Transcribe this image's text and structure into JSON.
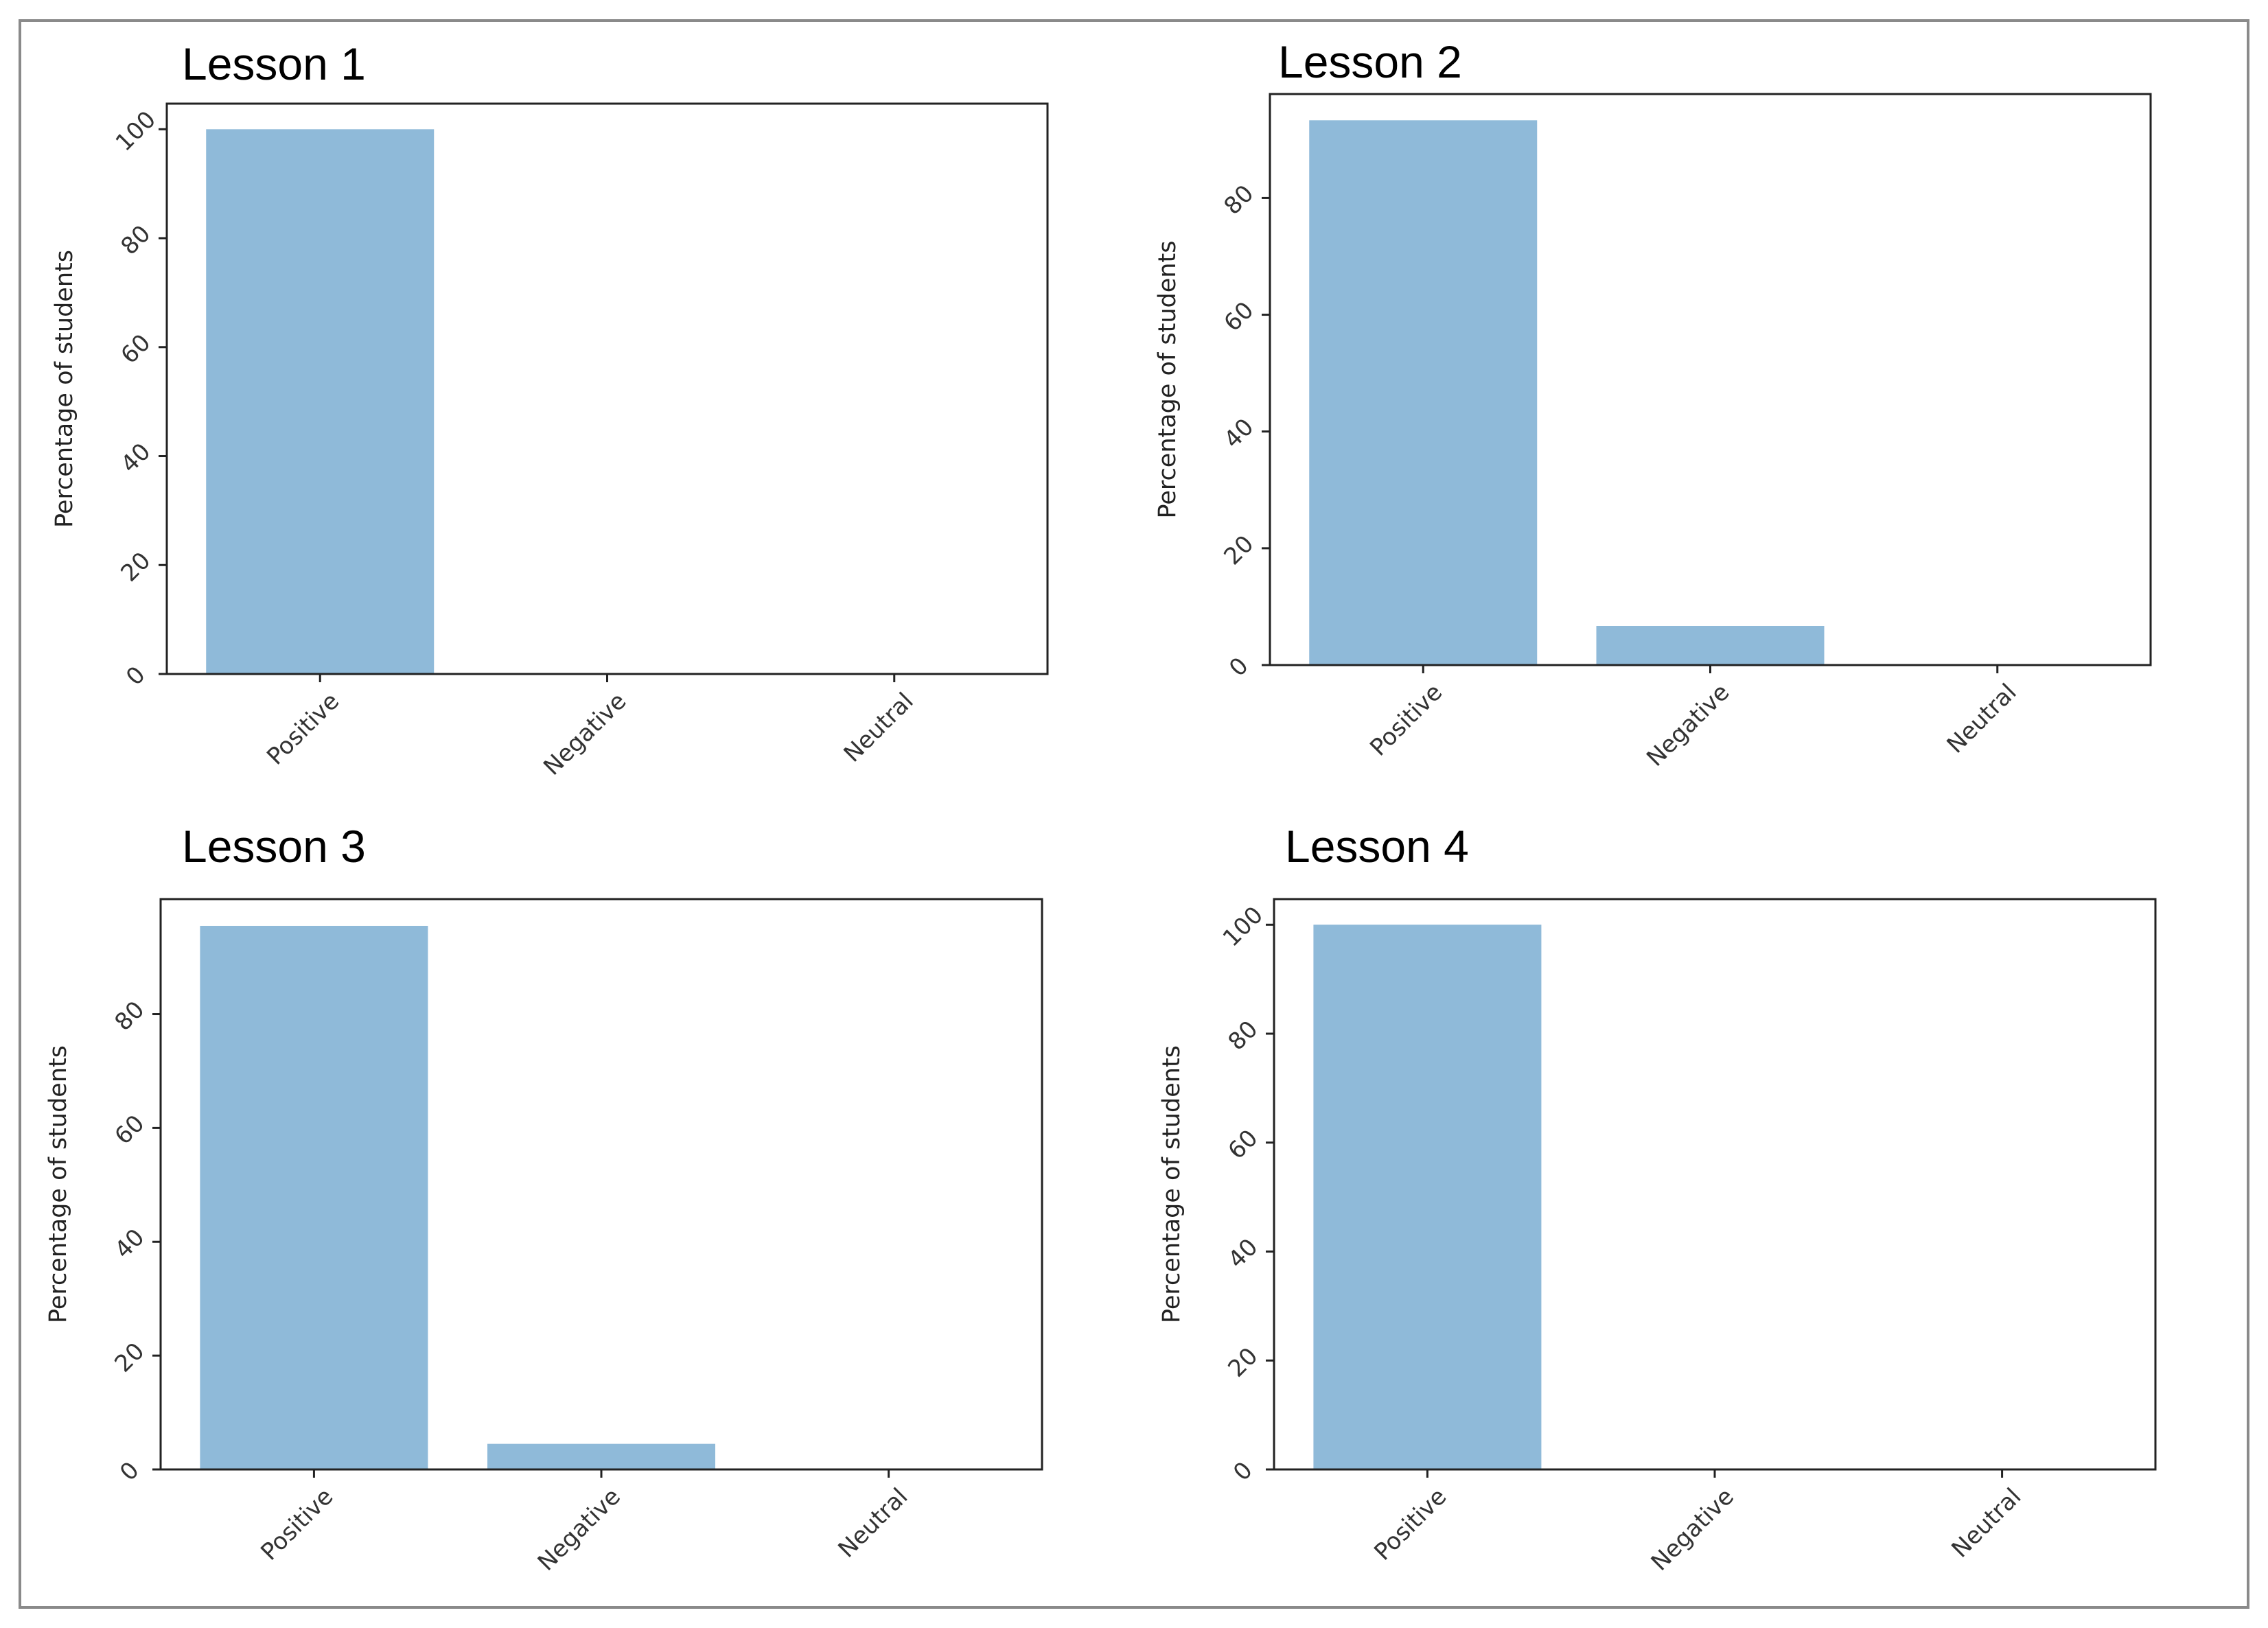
{
  "colors": {
    "bar": "#8fbad9",
    "axes": "#222222",
    "frame": "#8a8a8a"
  },
  "chart_data": [
    {
      "type": "bar",
      "title": "Lesson 1",
      "categories": [
        "Positive",
        "Negative",
        "Neutral"
      ],
      "values": [
        100,
        0,
        0
      ],
      "ylabel": "Percentage of students",
      "xlabel": "",
      "ylim": [
        0,
        104.7
      ],
      "yticks": [
        0,
        20,
        40,
        60,
        80,
        100
      ],
      "grid": false
    },
    {
      "type": "bar",
      "title": "Lesson 2",
      "categories": [
        "Positive",
        "Negative",
        "Neutral"
      ],
      "values": [
        93.3,
        6.7,
        0
      ],
      "ylabel": "Percentage of students",
      "xlabel": "",
      "ylim": [
        0,
        97.8
      ],
      "yticks": [
        0,
        20,
        40,
        60,
        80
      ],
      "grid": false
    },
    {
      "type": "bar",
      "title": "Lesson 3",
      "categories": [
        "Positive",
        "Negative",
        "Neutral"
      ],
      "values": [
        95.5,
        4.5,
        0
      ],
      "ylabel": "Percentage of students",
      "xlabel": "",
      "ylim": [
        0,
        100.2
      ],
      "yticks": [
        0,
        20,
        40,
        60,
        80
      ],
      "grid": false
    },
    {
      "type": "bar",
      "title": "Lesson 4",
      "categories": [
        "Positive",
        "Negative",
        "Neutral"
      ],
      "values": [
        100,
        0,
        0
      ],
      "ylabel": "Percentage of students",
      "xlabel": "",
      "ylim": [
        0,
        104.7
      ],
      "yticks": [
        0,
        20,
        40,
        60,
        80,
        100
      ],
      "grid": false
    }
  ]
}
